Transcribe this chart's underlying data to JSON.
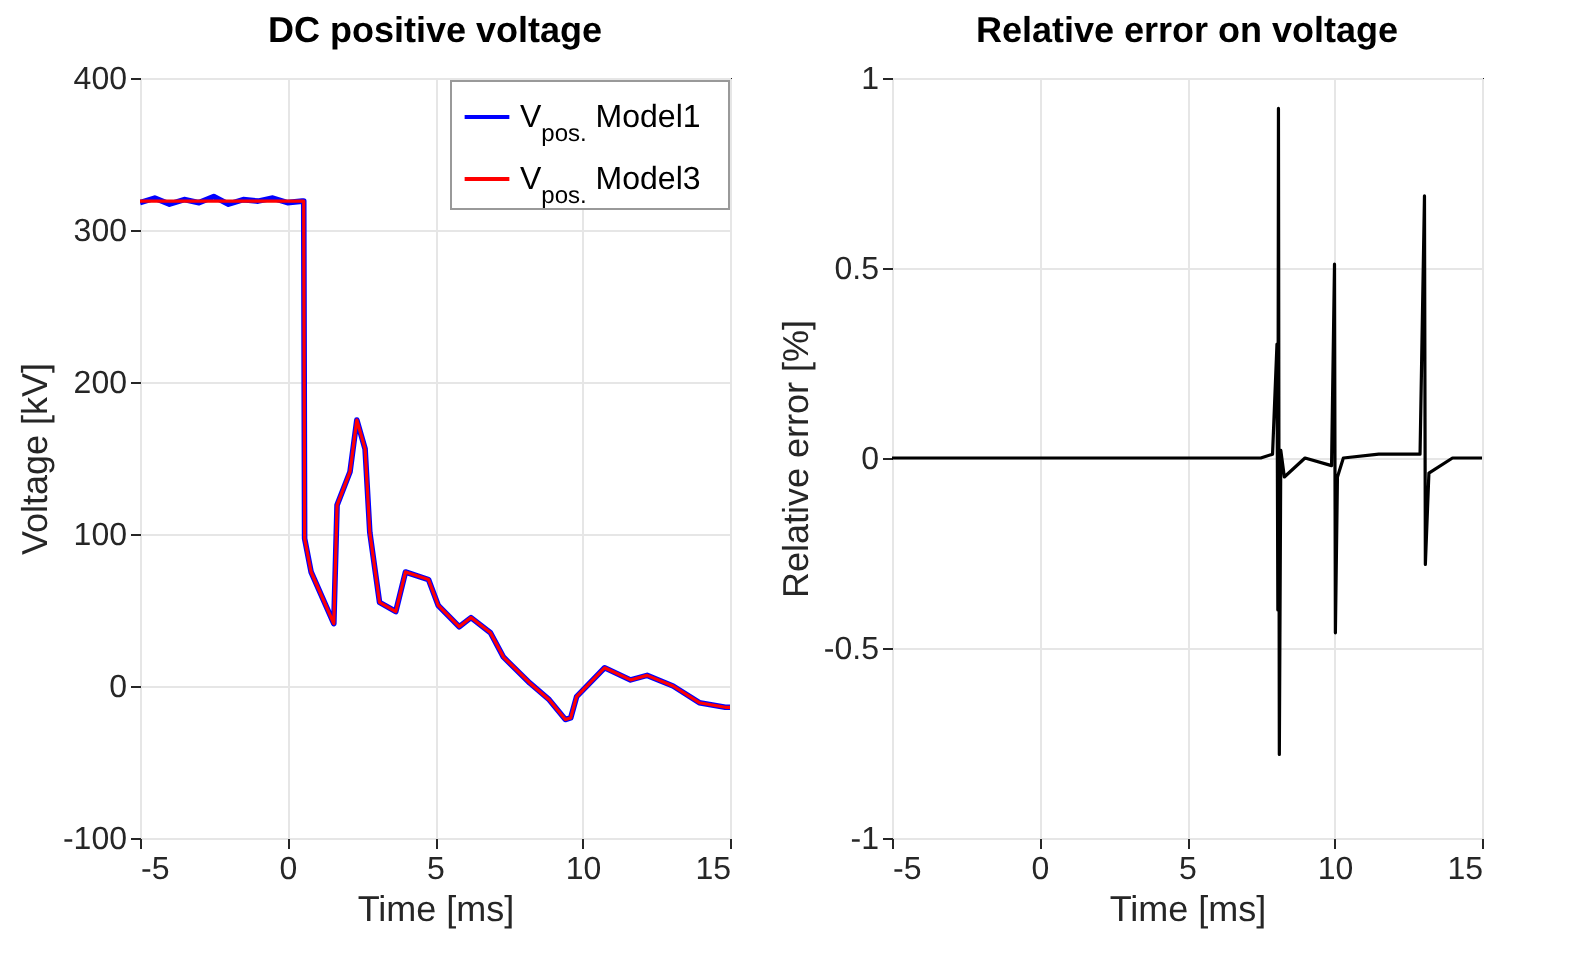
{
  "chart_data": [
    {
      "type": "line",
      "title": "DC positive voltage",
      "xlabel": "Time [ms]",
      "ylabel": "Voltage [kV]",
      "xlim": [
        -5,
        15
      ],
      "ylim": [
        -100,
        400
      ],
      "xticks": [
        -5,
        0,
        5,
        10,
        15
      ],
      "yticks": [
        -100,
        0,
        100,
        200,
        300,
        400
      ],
      "grid": true,
      "legend": "top right",
      "x": [
        -5,
        -4.5,
        -4,
        -3.5,
        -3,
        -2.5,
        -2,
        -1.5,
        -1,
        -0.5,
        0,
        0.5,
        0.55,
        0.58,
        0.8,
        1.57,
        1.68,
        2.12,
        2.35,
        2.63,
        2.79,
        3.12,
        3.67,
        4.0,
        4.78,
        5.11,
        5.82,
        6.22,
        6.88,
        7.32,
        8.21,
        8.87,
        9.42,
        9.6,
        9.8,
        10.75,
        11.63,
        12.19,
        13.07,
        13.96,
        14.84,
        15
      ],
      "series": [
        {
          "name": "V$_{pos.}$ Model1",
          "color": "#0000ff",
          "values": [
            318,
            321,
            317,
            320,
            318,
            322,
            317,
            320,
            319,
            321,
            318,
            319,
            319,
            97,
            75,
            41,
            119,
            141,
            175,
            156,
            101,
            55,
            49,
            75,
            70,
            53,
            39,
            45,
            35,
            19,
            2,
            -9,
            -22,
            -21,
            -7,
            12,
            4,
            7,
            0,
            -11,
            -14,
            -14
          ]
        },
        {
          "name": "V$_{pos.}$ Model3",
          "color": "#ff0000",
          "values": [
            319,
            319,
            319,
            319,
            319,
            319,
            319,
            319,
            319,
            319,
            319,
            319,
            319,
            97,
            75,
            41,
            119,
            141,
            175,
            156,
            101,
            55,
            49,
            75,
            70,
            53,
            39,
            45,
            35,
            19,
            2,
            -9,
            -22,
            -21,
            -7,
            12,
            4,
            7,
            0,
            -11,
            -14,
            -14
          ]
        }
      ]
    },
    {
      "type": "line",
      "title": "Relative error on voltage",
      "xlabel": "Time [ms]",
      "ylabel": "Relative error [%]",
      "xlim": [
        -5,
        15
      ],
      "ylim": [
        -1,
        1
      ],
      "xticks": [
        -5,
        0,
        5,
        10,
        15
      ],
      "yticks": [
        -1,
        -0.5,
        0,
        0.5,
        1
      ],
      "grid": true,
      "x": [
        -5,
        0,
        5,
        7.5,
        7.9,
        8.05,
        8.08,
        8.1,
        8.13,
        8.18,
        8.3,
        9,
        9.9,
        10.0,
        10.03,
        10.1,
        10.3,
        11.5,
        12.9,
        13.05,
        13.08,
        13.2,
        14,
        15
      ],
      "series": [
        {
          "color": "#000000",
          "values": [
            0,
            0,
            0,
            0,
            0.01,
            0.3,
            -0.4,
            0.92,
            -0.78,
            0.02,
            -0.05,
            0,
            -0.02,
            0.51,
            -0.46,
            -0.05,
            0,
            0.01,
            0.01,
            0.69,
            -0.28,
            -0.04,
            0,
            0
          ]
        }
      ]
    }
  ]
}
